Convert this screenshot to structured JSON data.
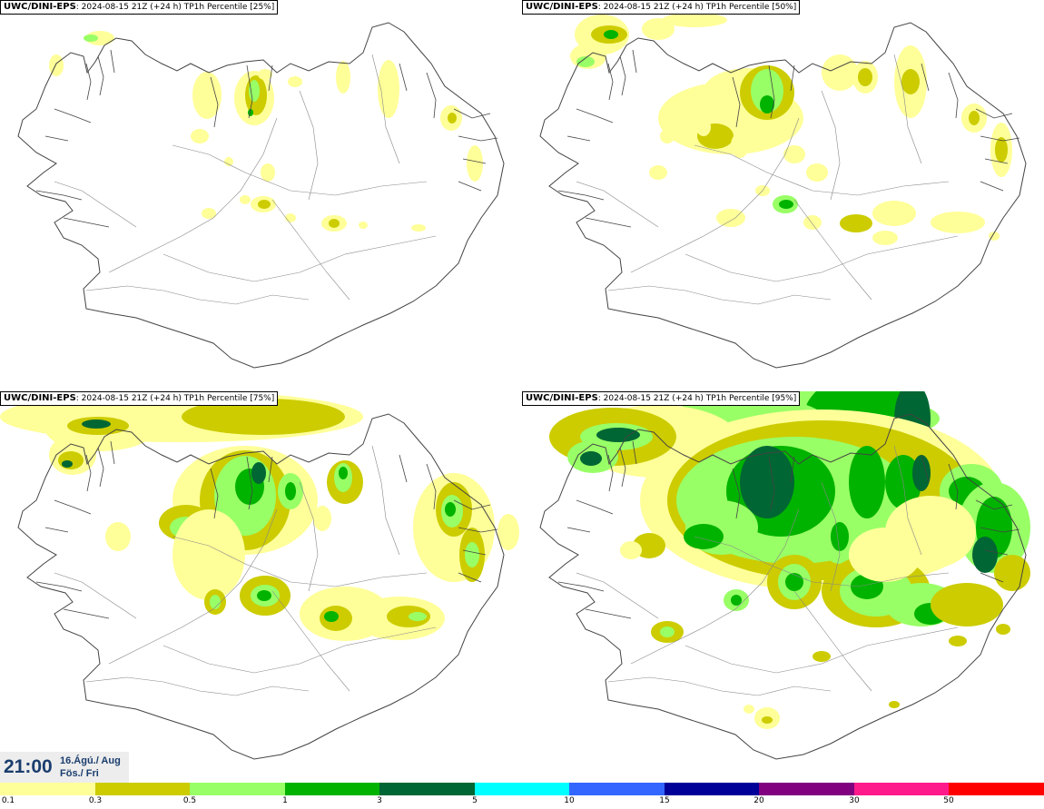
{
  "panels": [
    {
      "model": "UWC/DINI-EPS",
      "run": ": 2024-08-15 21Z (+24 h) TP1h Percentile [25%]",
      "level": 0
    },
    {
      "model": "UWC/DINI-EPS",
      "run": ": 2024-08-15 21Z (+24 h) TP1h Percentile [50%]",
      "level": 1
    },
    {
      "model": "UWC/DINI-EPS",
      "run": ": 2024-08-15 21Z (+24 h) TP1h Percentile [75%]",
      "level": 2
    },
    {
      "model": "UWC/DINI-EPS",
      "run": ": 2024-08-15 21Z (+24 h) TP1h Percentile [95%]",
      "level": 3
    }
  ],
  "time": {
    "clock": "21:00",
    "date_line1": "16.Ágú./ Aug",
    "date_line2": "Fös./ Fri"
  },
  "legend": {
    "colors": [
      "#ffff99",
      "#cccc00",
      "#99ff66",
      "#00b300",
      "#006633",
      "#00ffff",
      "#3366ff",
      "#000099",
      "#800080",
      "#ff1a8c",
      "#ff0000"
    ],
    "labels": [
      "0.1",
      "0.3",
      "0.5",
      "1",
      "3",
      "5",
      "10",
      "15",
      "20",
      "30",
      "50"
    ]
  }
}
